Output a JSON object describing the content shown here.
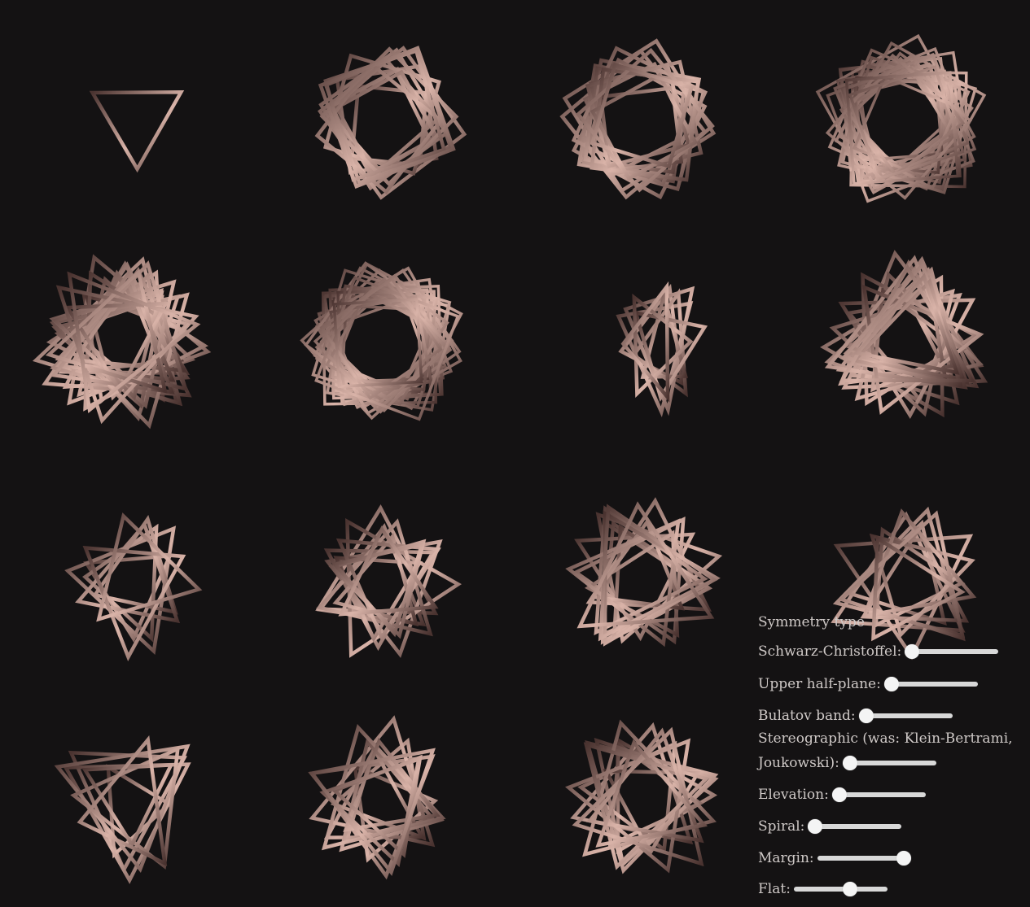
{
  "controls": {
    "heading": "Symmetry type",
    "sliders": [
      {
        "label": "Schwarz-Christoffel:",
        "value": 0.0
      },
      {
        "label": "Upper half-plane:",
        "value": 0.0
      },
      {
        "label": "Bulatov band:",
        "value": 0.0
      },
      {
        "label_line1": "Stereographic (was: Klein-Bertrami,",
        "label": "Joukowski):",
        "value": 0.0
      },
      {
        "label": "Elevation:",
        "value": 0.0
      },
      {
        "label": "Spiral:",
        "value": 0.0
      },
      {
        "label": "Margin:",
        "value": 1.0
      },
      {
        "label": "Flat:",
        "value": 0.62
      }
    ]
  },
  "colors": {
    "background": "#141213",
    "frame_light": "#d9b3a8",
    "frame_dark": "#4a3330",
    "panel_text": "#cfc9c7"
  }
}
